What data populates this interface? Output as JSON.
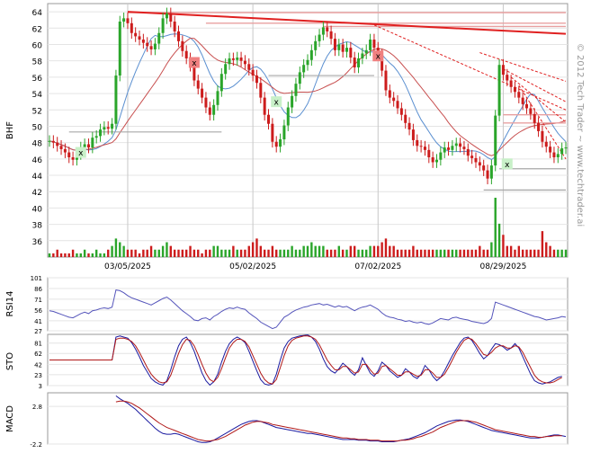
{
  "chart_data": [
    {
      "type": "candlestick",
      "panel": "price",
      "ylabel": "BHF",
      "ylim": [
        34,
        65
      ],
      "y_ticks": [
        "64",
        "62",
        "60",
        "58",
        "56",
        "54",
        "52",
        "50",
        "48",
        "46",
        "44",
        "42",
        "40",
        "38",
        "36"
      ],
      "x_labels": [
        "03/05/2025",
        "05/02/2025",
        "07/02/2025",
        "08/29/2025"
      ],
      "watermark": "© 2012 Tech Trader ~ www.techtrader.ai",
      "grid": true,
      "colors": {
        "up": "#2aa52a",
        "down": "#cc1c1c",
        "ma_short": "#5a8fd0",
        "ma_long": "#c85050",
        "trend": "#e02020",
        "support": "#b0b0b0",
        "volume": "#cc1c1c"
      },
      "closes": [
        48.2,
        48.0,
        47.6,
        47.2,
        46.8,
        46.2,
        45.9,
        46.6,
        47.4,
        47.8,
        47.4,
        48.6,
        48.8,
        49.6,
        49.9,
        49.7,
        50.3,
        56.2,
        62.8,
        63.2,
        62.6,
        61.4,
        61.0,
        60.6,
        60.2,
        59.8,
        59.4,
        60.1,
        61.4,
        63.2,
        63.8,
        62.8,
        61.6,
        60.4,
        59.2,
        58.3,
        57.4,
        55.6,
        54.6,
        53.5,
        52.3,
        51.4,
        52.6,
        54.3,
        56.4,
        57.6,
        58.3,
        58.1,
        58.4,
        58.0,
        57.6,
        56.9,
        56.2,
        55.3,
        53.5,
        51.4,
        50.3,
        48.1,
        47.5,
        48.4,
        50.1,
        52.3,
        53.7,
        55.2,
        56.6,
        57.5,
        58.1,
        59.3,
        60.4,
        61.2,
        62.1,
        61.6,
        60.7,
        59.3,
        60.0,
        59.1,
        59.6,
        58.4,
        57.2,
        58.3,
        58.9,
        59.3,
        60.6,
        59.6,
        58.7,
        56.8,
        54.4,
        53.5,
        53.1,
        52.2,
        51.4,
        50.4,
        49.6,
        48.3,
        47.6,
        47.5,
        47.1,
        46.2,
        45.6,
        45.9,
        46.8,
        47.4,
        47.1,
        47.6,
        47.9,
        47.5,
        47.2,
        46.4,
        46.1,
        45.6,
        45.2,
        44.6,
        43.6,
        45.2,
        51.3,
        57.5,
        56.3,
        55.6,
        54.8,
        54.2,
        53.5,
        52.7,
        52.2,
        51.5,
        50.4,
        49.4,
        48.1,
        47.5,
        46.8,
        46.2,
        46.6,
        47.3,
        47.4
      ],
      "volume": [
        1,
        1,
        2,
        1,
        1,
        1,
        2,
        1,
        1,
        2,
        1,
        1,
        2,
        1,
        1,
        2,
        3,
        5,
        4,
        3,
        2,
        2,
        2,
        1,
        2,
        2,
        3,
        2,
        2,
        3,
        4,
        3,
        2,
        2,
        2,
        2,
        3,
        2,
        2,
        1,
        2,
        2,
        3,
        3,
        2,
        2,
        2,
        3,
        2,
        2,
        2,
        3,
        4,
        5,
        3,
        2,
        2,
        3,
        2,
        2,
        2,
        2,
        3,
        2,
        2,
        3,
        3,
        4,
        3,
        3,
        3,
        2,
        2,
        2,
        3,
        2,
        2,
        3,
        3,
        2,
        2,
        2,
        3,
        3,
        3,
        4,
        5,
        3,
        3,
        2,
        2,
        2,
        2,
        3,
        2,
        2,
        2,
        2,
        2,
        2,
        2,
        2,
        2,
        2,
        2,
        2,
        2,
        2,
        2,
        2,
        3,
        2,
        2,
        4,
        16,
        9,
        6,
        3,
        3,
        2,
        3,
        2,
        2,
        2,
        2,
        2,
        7,
        4,
        3,
        2,
        2,
        2,
        2
      ],
      "signals": [
        {
          "type": "buy",
          "label": "x"
        },
        {
          "type": "sell",
          "label": "x"
        },
        {
          "type": "buy",
          "label": "x"
        },
        {
          "type": "sell",
          "label": "x"
        },
        {
          "type": "buy",
          "label": "x"
        }
      ]
    },
    {
      "type": "line",
      "panel": "indicator",
      "ylabel": "RSI14",
      "ylim": [
        27,
        101
      ],
      "y_ticks": [
        "101",
        "86",
        "71",
        "56",
        "41",
        "27"
      ],
      "color": "#5555bb",
      "values": [
        55,
        54,
        52,
        50,
        48,
        46,
        45,
        48,
        51,
        53,
        51,
        55,
        56,
        58,
        59,
        58,
        60,
        84,
        83,
        80,
        76,
        73,
        71,
        69,
        67,
        65,
        63,
        66,
        69,
        72,
        74,
        70,
        65,
        60,
        55,
        51,
        47,
        42,
        41,
        44,
        45,
        42,
        47,
        50,
        54,
        57,
        59,
        58,
        60,
        58,
        57,
        52,
        48,
        44,
        39,
        36,
        33,
        30,
        32,
        39,
        46,
        49,
        53,
        56,
        58,
        60,
        61,
        63,
        64,
        65,
        63,
        64,
        62,
        60,
        62,
        60,
        61,
        58,
        55,
        58,
        60,
        61,
        63,
        60,
        57,
        52,
        48,
        46,
        45,
        43,
        42,
        40,
        41,
        39,
        38,
        39,
        37,
        36,
        38,
        41,
        44,
        43,
        42,
        45,
        46,
        44,
        43,
        42,
        40,
        39,
        38,
        37,
        39,
        44,
        67,
        65,
        63,
        61,
        59,
        57,
        55,
        53,
        51,
        49,
        47,
        46,
        44,
        42,
        43,
        44,
        45,
        47,
        46
      ]
    },
    {
      "type": "line",
      "panel": "indicator",
      "ylabel": "STO",
      "ylim": [
        3,
        97
      ],
      "y_ticks": [
        "81",
        "62",
        "42",
        "23",
        "3"
      ],
      "colors": [
        "#1a1aa0",
        "#b01818"
      ],
      "series": [
        {
          "values": [
            50,
            50,
            50,
            50,
            50,
            50,
            50,
            50,
            50,
            50,
            50,
            50,
            50,
            50,
            50,
            50,
            50,
            92,
            94,
            92,
            90,
            82,
            70,
            56,
            40,
            28,
            16,
            10,
            6,
            4,
            12,
            32,
            56,
            76,
            88,
            92,
            82,
            66,
            46,
            26,
            12,
            4,
            10,
            24,
            46,
            66,
            80,
            88,
            92,
            88,
            82,
            66,
            48,
            30,
            14,
            6,
            4,
            6,
            24,
            50,
            72,
            84,
            90,
            92,
            94,
            95,
            96,
            92,
            84,
            70,
            52,
            38,
            30,
            26,
            34,
            44,
            38,
            28,
            22,
            32,
            54,
            40,
            26,
            20,
            30,
            46,
            40,
            30,
            24,
            18,
            22,
            34,
            28,
            20,
            16,
            24,
            40,
            32,
            20,
            12,
            18,
            30,
            44,
            58,
            70,
            82,
            90,
            92,
            86,
            74,
            62,
            52,
            58,
            70,
            80,
            78,
            74,
            68,
            72,
            80,
            72,
            56,
            40,
            24,
            12,
            8,
            6,
            8,
            10,
            14,
            18,
            20
          ]
        },
        {
          "values": [
            50,
            50,
            50,
            50,
            50,
            50,
            50,
            50,
            50,
            50,
            50,
            50,
            50,
            50,
            50,
            50,
            50,
            88,
            90,
            90,
            88,
            84,
            76,
            64,
            50,
            36,
            24,
            16,
            10,
            8,
            10,
            22,
            42,
            62,
            78,
            88,
            86,
            76,
            60,
            42,
            26,
            14,
            10,
            18,
            34,
            54,
            72,
            82,
            88,
            88,
            84,
            74,
            58,
            42,
            26,
            14,
            8,
            6,
            14,
            36,
            58,
            76,
            86,
            90,
            92,
            94,
            94,
            92,
            88,
            78,
            64,
            50,
            40,
            32,
            32,
            38,
            38,
            32,
            26,
            28,
            42,
            42,
            32,
            24,
            26,
            38,
            40,
            34,
            28,
            22,
            22,
            28,
            28,
            24,
            20,
            22,
            32,
            32,
            26,
            18,
            18,
            24,
            36,
            50,
            64,
            76,
            86,
            90,
            88,
            80,
            70,
            60,
            58,
            64,
            72,
            76,
            76,
            72,
            72,
            76,
            74,
            64,
            50,
            36,
            22,
            14,
            10,
            8,
            8,
            10,
            14,
            18
          ]
        }
      ]
    },
    {
      "type": "line",
      "panel": "indicator",
      "ylabel": "MACD",
      "ylim": [
        -2.2,
        4.6
      ],
      "y_ticks": [
        "2.8",
        "-2.2"
      ],
      "colors": [
        "#1a1aa0",
        "#b01818"
      ],
      "series": [
        {
          "values": [
            null,
            null,
            null,
            null,
            null,
            null,
            null,
            null,
            null,
            null,
            null,
            null,
            null,
            null,
            null,
            null,
            null,
            4.2,
            3.8,
            3.5,
            3.2,
            2.8,
            2.4,
            1.9,
            1.4,
            0.9,
            0.4,
            -0.1,
            -0.5,
            -0.8,
            -0.9,
            -0.9,
            -0.8,
            -0.9,
            -1.1,
            -1.3,
            -1.5,
            -1.7,
            -1.9,
            -2.0,
            -2.0,
            -1.9,
            -1.7,
            -1.4,
            -1.1,
            -0.8,
            -0.5,
            -0.2,
            0.1,
            0.4,
            0.6,
            0.8,
            0.9,
            0.9,
            0.8,
            0.6,
            0.4,
            0.2,
            0.0,
            -0.1,
            -0.2,
            -0.3,
            -0.4,
            -0.5,
            -0.6,
            -0.7,
            -0.8,
            -0.8,
            -0.9,
            -1.0,
            -1.1,
            -1.2,
            -1.3,
            -1.4,
            -1.5,
            -1.6,
            -1.6,
            -1.6,
            -1.6,
            -1.7,
            -1.7,
            -1.7,
            -1.8,
            -1.8,
            -1.8,
            -1.9,
            -1.9,
            -1.9,
            -1.9,
            -1.8,
            -1.7,
            -1.6,
            -1.5,
            -1.3,
            -1.1,
            -0.9,
            -0.7,
            -0.4,
            -0.1,
            0.2,
            0.4,
            0.6,
            0.8,
            0.9,
            1.0,
            1.0,
            0.9,
            0.8,
            0.6,
            0.4,
            0.2,
            0.0,
            -0.2,
            -0.4,
            -0.5,
            -0.6,
            -0.7,
            -0.8,
            -0.9,
            -1.0,
            -1.1,
            -1.2,
            -1.3,
            -1.4,
            -1.4,
            -1.4,
            -1.3,
            -1.2,
            -1.1,
            -1.0,
            -1.0,
            -1.1,
            -1.2
          ]
        },
        {
          "values": [
            null,
            null,
            null,
            null,
            null,
            null,
            null,
            null,
            null,
            null,
            null,
            null,
            null,
            null,
            null,
            null,
            null,
            3.4,
            3.5,
            3.5,
            3.4,
            3.2,
            2.9,
            2.6,
            2.2,
            1.8,
            1.4,
            1.0,
            0.6,
            0.3,
            0.0,
            -0.2,
            -0.4,
            -0.6,
            -0.8,
            -1.0,
            -1.2,
            -1.4,
            -1.6,
            -1.7,
            -1.8,
            -1.8,
            -1.7,
            -1.6,
            -1.4,
            -1.2,
            -0.9,
            -0.6,
            -0.3,
            0.0,
            0.3,
            0.5,
            0.7,
            0.8,
            0.8,
            0.7,
            0.6,
            0.4,
            0.3,
            0.2,
            0.1,
            0.0,
            -0.1,
            -0.2,
            -0.3,
            -0.4,
            -0.5,
            -0.6,
            -0.7,
            -0.8,
            -0.9,
            -1.0,
            -1.1,
            -1.2,
            -1.3,
            -1.4,
            -1.4,
            -1.5,
            -1.5,
            -1.6,
            -1.6,
            -1.6,
            -1.7,
            -1.7,
            -1.7,
            -1.8,
            -1.8,
            -1.8,
            -1.8,
            -1.8,
            -1.7,
            -1.7,
            -1.6,
            -1.5,
            -1.3,
            -1.2,
            -1.0,
            -0.8,
            -0.6,
            -0.3,
            0.0,
            0.2,
            0.4,
            0.6,
            0.8,
            0.9,
            0.9,
            0.9,
            0.8,
            0.7,
            0.5,
            0.3,
            0.1,
            -0.1,
            -0.3,
            -0.4,
            -0.5,
            -0.6,
            -0.7,
            -0.8,
            -0.9,
            -1.0,
            -1.1,
            -1.2,
            -1.2,
            -1.3,
            -1.3,
            -1.2,
            -1.2,
            -1.1,
            -1.1,
            -1.1
          ]
        }
      ]
    }
  ]
}
